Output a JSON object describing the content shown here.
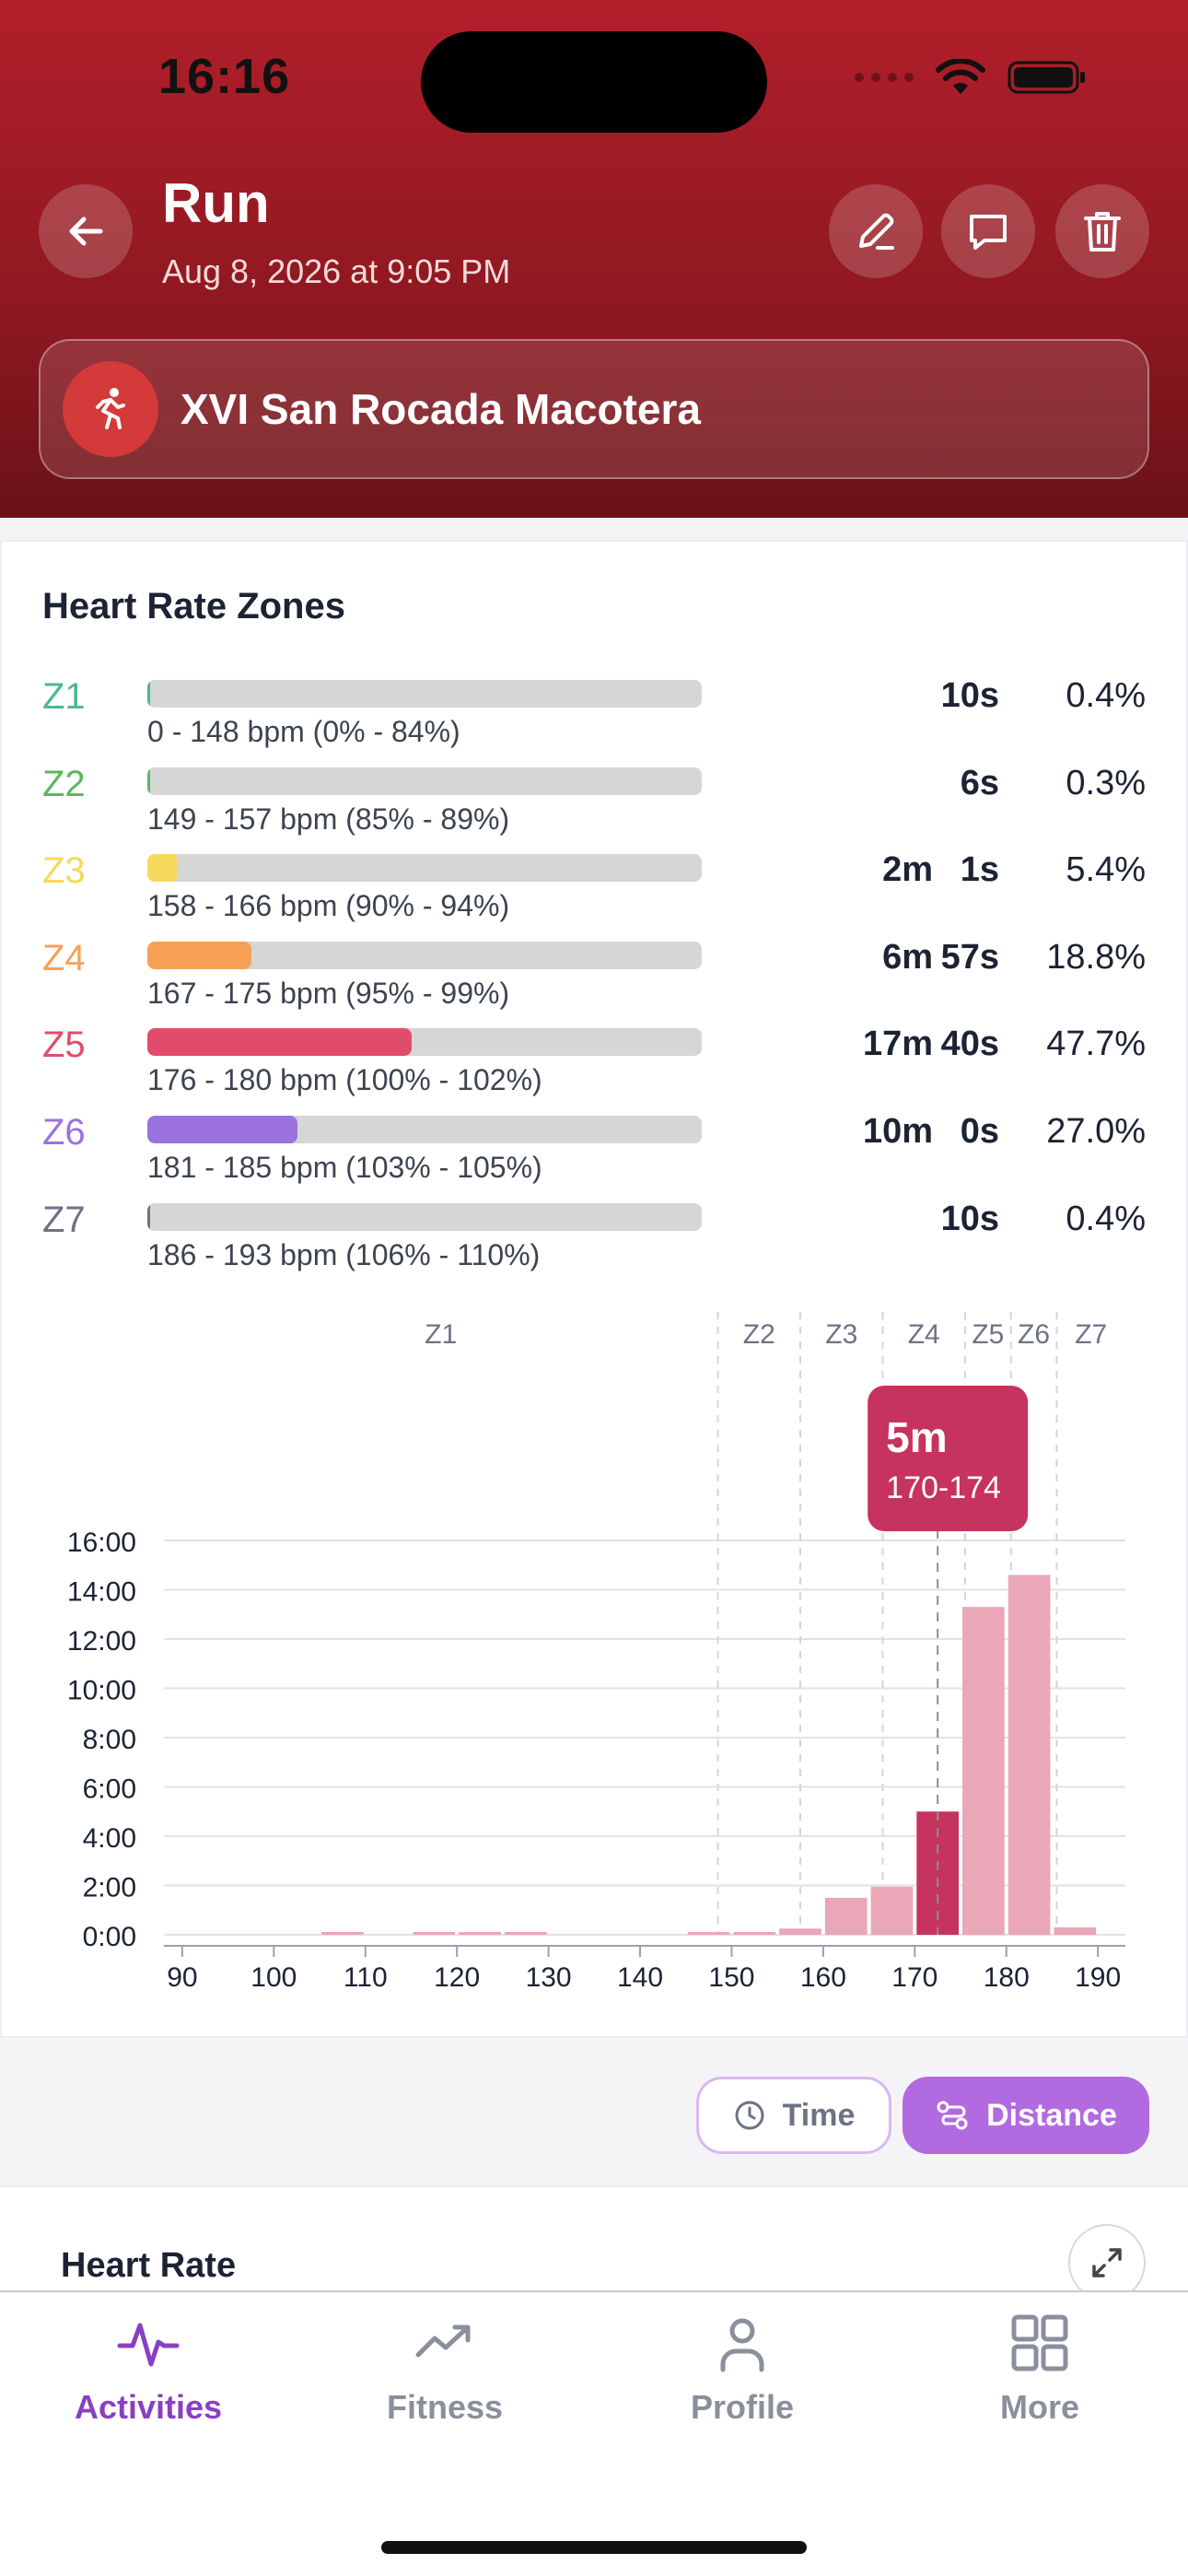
{
  "status_bar": {
    "time": "16:16"
  },
  "header": {
    "title": "Run",
    "subtitle": "Aug 8, 2026 at 9:05 PM",
    "event_name": "XVI San Rocada Macotera",
    "icons": {
      "back": "arrow-left-icon",
      "edit": "pencil-icon",
      "comment": "chat-bubble-icon",
      "delete": "trash-icon",
      "event": "runner-icon"
    }
  },
  "hr_zones": {
    "title": "Heart Rate Zones",
    "zones": [
      {
        "label": "Z1",
        "range": "0 - 148 bpm (0% - 84%)",
        "time_min": "",
        "time_sec": "10s",
        "pct": "0.4%",
        "fill": 0.004,
        "color": "#4db891"
      },
      {
        "label": "Z2",
        "range": "149 - 157 bpm (85% - 89%)",
        "time_min": "",
        "time_sec": "6s",
        "pct": "0.3%",
        "fill": 0.003,
        "color": "#5cb65e"
      },
      {
        "label": "Z3",
        "range": "158 - 166 bpm (90% - 94%)",
        "time_min": "2m",
        "time_sec": "1s",
        "pct": "5.4%",
        "fill": 0.054,
        "color": "#f6d95c"
      },
      {
        "label": "Z4",
        "range": "167 - 175 bpm (95% - 99%)",
        "time_min": "6m",
        "time_sec": "57s",
        "pct": "18.8%",
        "fill": 0.188,
        "color": "#f7a055"
      },
      {
        "label": "Z5",
        "range": "176 - 180 bpm (100% - 102%)",
        "time_min": "17m",
        "time_sec": "40s",
        "pct": "47.7%",
        "fill": 0.477,
        "color": "#e14c6c"
      },
      {
        "label": "Z6",
        "range": "181 - 185 bpm (103% - 105%)",
        "time_min": "10m",
        "time_sec": "0s",
        "pct": "27.0%",
        "fill": 0.27,
        "color": "#9b72dd"
      },
      {
        "label": "Z7",
        "range": "186 - 193 bpm (106% - 110%)",
        "time_min": "",
        "time_sec": "10s",
        "pct": "0.4%",
        "fill": 0.004,
        "color": "#6d7385"
      }
    ]
  },
  "chart_data": {
    "type": "bar",
    "xlabel": "",
    "ylabel": "",
    "xlim": [
      88,
      193
    ],
    "ylim": [
      0,
      16
    ],
    "x_ticks": [
      "90",
      "100",
      "110",
      "120",
      "130",
      "140",
      "150",
      "160",
      "170",
      "180",
      "190"
    ],
    "y_ticks": [
      "0:00",
      "2:00",
      "4:00",
      "6:00",
      "8:00",
      "10:00",
      "12:00",
      "14:00",
      "16:00"
    ],
    "zone_boundaries": [
      148.5,
      157.5,
      166.5,
      175.5,
      180.5,
      185.5
    ],
    "zone_labels": [
      "Z1",
      "Z2",
      "Z3",
      "Z4",
      "Z5",
      "Z6",
      "Z7"
    ],
    "bins": [
      {
        "x0": 105,
        "x1": 110,
        "value": 0.08
      },
      {
        "x0": 115,
        "x1": 120,
        "value": 0.05
      },
      {
        "x0": 120,
        "x1": 125,
        "value": 0.05
      },
      {
        "x0": 125,
        "x1": 130,
        "value": 0.05
      },
      {
        "x0": 145,
        "x1": 150,
        "value": 0.08
      },
      {
        "x0": 150,
        "x1": 155,
        "value": 0.08
      },
      {
        "x0": 155,
        "x1": 160,
        "value": 0.25
      },
      {
        "x0": 160,
        "x1": 165,
        "value": 1.5
      },
      {
        "x0": 165,
        "x1": 170,
        "value": 1.95
      },
      {
        "x0": 170,
        "x1": 175,
        "value": 5.0
      },
      {
        "x0": 175,
        "x1": 180,
        "value": 13.3
      },
      {
        "x0": 180,
        "x1": 185,
        "value": 14.6
      },
      {
        "x0": 185,
        "x1": 190,
        "value": 0.3
      }
    ],
    "highlight_bin": 9,
    "tooltip": {
      "value": "5m",
      "range": "170-174"
    },
    "bar_color": "#eaa7b8",
    "highlight_color": "#c6335e"
  },
  "toggle": {
    "time_label": "Time",
    "distance_label": "Distance",
    "selected": "Distance"
  },
  "heart_rate_section": {
    "title": "Heart Rate"
  },
  "tabbar": {
    "tabs": [
      {
        "label": "Activities",
        "icon": "activity-pulse-icon"
      },
      {
        "label": "Fitness",
        "icon": "trend-up-icon"
      },
      {
        "label": "Profile",
        "icon": "person-icon"
      },
      {
        "label": "More",
        "icon": "grid-icon"
      }
    ],
    "active": "Activities"
  }
}
